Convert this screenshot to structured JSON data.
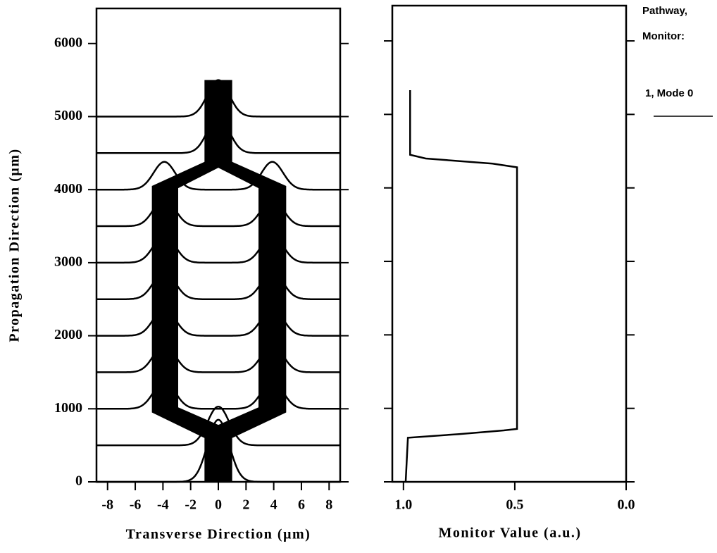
{
  "chart_data": [
    {
      "type": "bpm",
      "xlabel": "Transverse Direction (µm)",
      "ylabel": "Propagation Direction (µm)",
      "xlim": [
        -8.8,
        8.8
      ],
      "xticks": [
        -8,
        -6,
        -4,
        -2,
        0,
        2,
        4,
        6,
        8
      ],
      "ylim": [
        0,
        6480
      ],
      "yticks": [
        0,
        1000,
        2000,
        3000,
        4000,
        5000,
        6000
      ],
      "color": "#000000",
      "waveguide": {
        "outer": {
          "x": [
            -1,
            1,
            1,
            4.9,
            4.9,
            1,
            1,
            -1,
            -1,
            -4.8,
            -4.8,
            -1
          ],
          "z": [
            0,
            0,
            600,
            950,
            4050,
            4380,
            5500,
            5500,
            4380,
            4050,
            950,
            600
          ]
        },
        "inner": {
          "x": [
            -2.9,
            0,
            2.9,
            2.9,
            0,
            -2.9
          ],
          "z": [
            1020,
            780,
            1020,
            4020,
            4300,
            4020
          ]
        }
      },
      "profile_width": 1.1,
      "profiles": [
        {
          "z": 0,
          "peaks": [
            {
              "center": 0,
              "height": 850
            }
          ]
        },
        {
          "z": 500,
          "peaks": [
            {
              "center": 0,
              "height": 530
            }
          ]
        },
        {
          "z": 1000,
          "peaks": [
            {
              "center": -3.9,
              "height": 380
            },
            {
              "center": 3.9,
              "height": 380
            }
          ]
        },
        {
          "z": 1500,
          "peaks": [
            {
              "center": -3.9,
              "height": 380
            },
            {
              "center": 3.9,
              "height": 380
            }
          ]
        },
        {
          "z": 2000,
          "peaks": [
            {
              "center": -3.9,
              "height": 380
            },
            {
              "center": 3.9,
              "height": 380
            }
          ]
        },
        {
          "z": 2500,
          "peaks": [
            {
              "center": -3.9,
              "height": 380
            },
            {
              "center": 3.9,
              "height": 380
            }
          ]
        },
        {
          "z": 3000,
          "peaks": [
            {
              "center": -3.9,
              "height": 380
            },
            {
              "center": 3.9,
              "height": 380
            }
          ]
        },
        {
          "z": 3500,
          "peaks": [
            {
              "center": -3.9,
              "height": 380
            },
            {
              "center": 3.9,
              "height": 380
            }
          ]
        },
        {
          "z": 4000,
          "peaks": [
            {
              "center": -3.9,
              "height": 380
            },
            {
              "center": 3.9,
              "height": 380
            }
          ]
        },
        {
          "z": 4500,
          "peaks": [
            {
              "center": 0,
              "height": 500
            }
          ]
        },
        {
          "z": 5000,
          "peaks": [
            {
              "center": 0,
              "height": 500
            }
          ]
        }
      ]
    },
    {
      "type": "monitor",
      "xlabel": "Monitor Value (a.u.)",
      "xlim": [
        1.05,
        0.0
      ],
      "xticks": [
        {
          "value": 1.0,
          "label": "1.0"
        },
        0.5,
        {
          "value": 0.0,
          "label": "0.0"
        }
      ],
      "ylim": [
        0,
        6480
      ],
      "yticks": [
        0,
        1000,
        2000,
        3000,
        4000,
        5000,
        6000
      ],
      "legend_title": [
        "Pathway,",
        "Monitor:"
      ],
      "series": [
        {
          "name": "1, Mode 0",
          "color": "#000000",
          "x": [
            0,
            600,
            650,
            700,
            720,
            4280,
            4330,
            4400,
            4450,
            5330
          ],
          "values": [
            0.99,
            0.98,
            0.75,
            0.55,
            0.49,
            0.49,
            0.6,
            0.9,
            0.97,
            0.97
          ]
        }
      ]
    }
  ]
}
